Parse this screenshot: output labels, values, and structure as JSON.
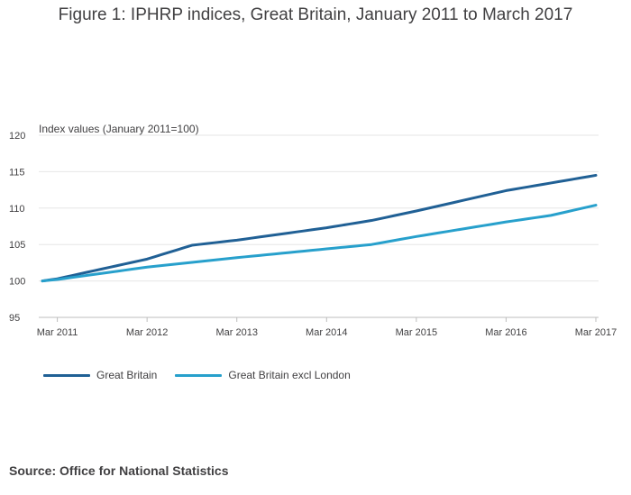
{
  "title": "Figure 1: IPHRP indices, Great Britain, January 2011 to March 2017",
  "source": "Source: Office for National Statistics",
  "chart_data": {
    "type": "line",
    "ylabel": "Index values (January 2011=100)",
    "ylim": [
      95,
      120
    ],
    "yticks": [
      95,
      100,
      105,
      110,
      115,
      120
    ],
    "xtick_labels": [
      "Mar 2011",
      "Mar 2012",
      "Mar 2013",
      "Mar 2014",
      "Mar 2015",
      "Mar 2016",
      "Mar 2017"
    ],
    "x_start": "Jan 2011",
    "x_end": "Mar 2017",
    "grid": true,
    "legend_position": "bottom-left",
    "series": [
      {
        "name": "Great Britain",
        "color": "#206095",
        "anchors": [
          {
            "x": "Jan 2011",
            "y": 100.0
          },
          {
            "x": "Mar 2011",
            "y": 100.3
          },
          {
            "x": "Mar 2012",
            "y": 103.0
          },
          {
            "x": "Sep 2012",
            "y": 104.9
          },
          {
            "x": "Mar 2013",
            "y": 105.6
          },
          {
            "x": "Mar 2014",
            "y": 107.3
          },
          {
            "x": "Sep 2014",
            "y": 108.3
          },
          {
            "x": "Mar 2015",
            "y": 109.6
          },
          {
            "x": "Sep 2015",
            "y": 111.0
          },
          {
            "x": "Mar 2016",
            "y": 112.4
          },
          {
            "x": "Mar 2017",
            "y": 114.5
          }
        ]
      },
      {
        "name": "Great Britain excl London",
        "color": "#27a0cc",
        "anchors": [
          {
            "x": "Jan 2011",
            "y": 100.0
          },
          {
            "x": "Mar 2011",
            "y": 100.2
          },
          {
            "x": "Mar 2012",
            "y": 101.9
          },
          {
            "x": "Mar 2013",
            "y": 103.2
          },
          {
            "x": "Mar 2014",
            "y": 104.4
          },
          {
            "x": "Sep 2014",
            "y": 105.0
          },
          {
            "x": "Mar 2015",
            "y": 106.1
          },
          {
            "x": "Sep 2015",
            "y": 107.1
          },
          {
            "x": "Mar 2016",
            "y": 108.1
          },
          {
            "x": "Sep 2016",
            "y": 109.0
          },
          {
            "x": "Mar 2017",
            "y": 110.4
          }
        ]
      }
    ]
  }
}
